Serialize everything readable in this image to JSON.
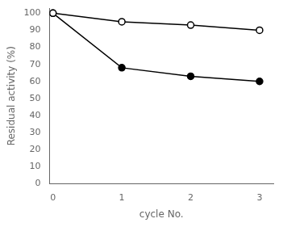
{
  "chart_data": {
    "type": "line",
    "xlabel": "cycle No.",
    "ylabel": "Residual activity (%)",
    "x": [
      0,
      1,
      2,
      3
    ],
    "series": [
      {
        "color": "#000000",
        "marker": "open_circle",
        "values": [
          100,
          95,
          93,
          90
        ]
      },
      {
        "color": "#000000",
        "marker": "circle",
        "values": [
          100,
          68,
          63,
          60
        ]
      }
    ],
    "xlim": [
      -0.05,
      3.2
    ],
    "ylim": [
      0,
      103
    ],
    "xticks": [
      0,
      1,
      2,
      3
    ],
    "yticks": [
      0,
      10,
      20,
      30,
      40,
      50,
      60,
      70,
      80,
      90,
      100
    ],
    "grid": false
  }
}
